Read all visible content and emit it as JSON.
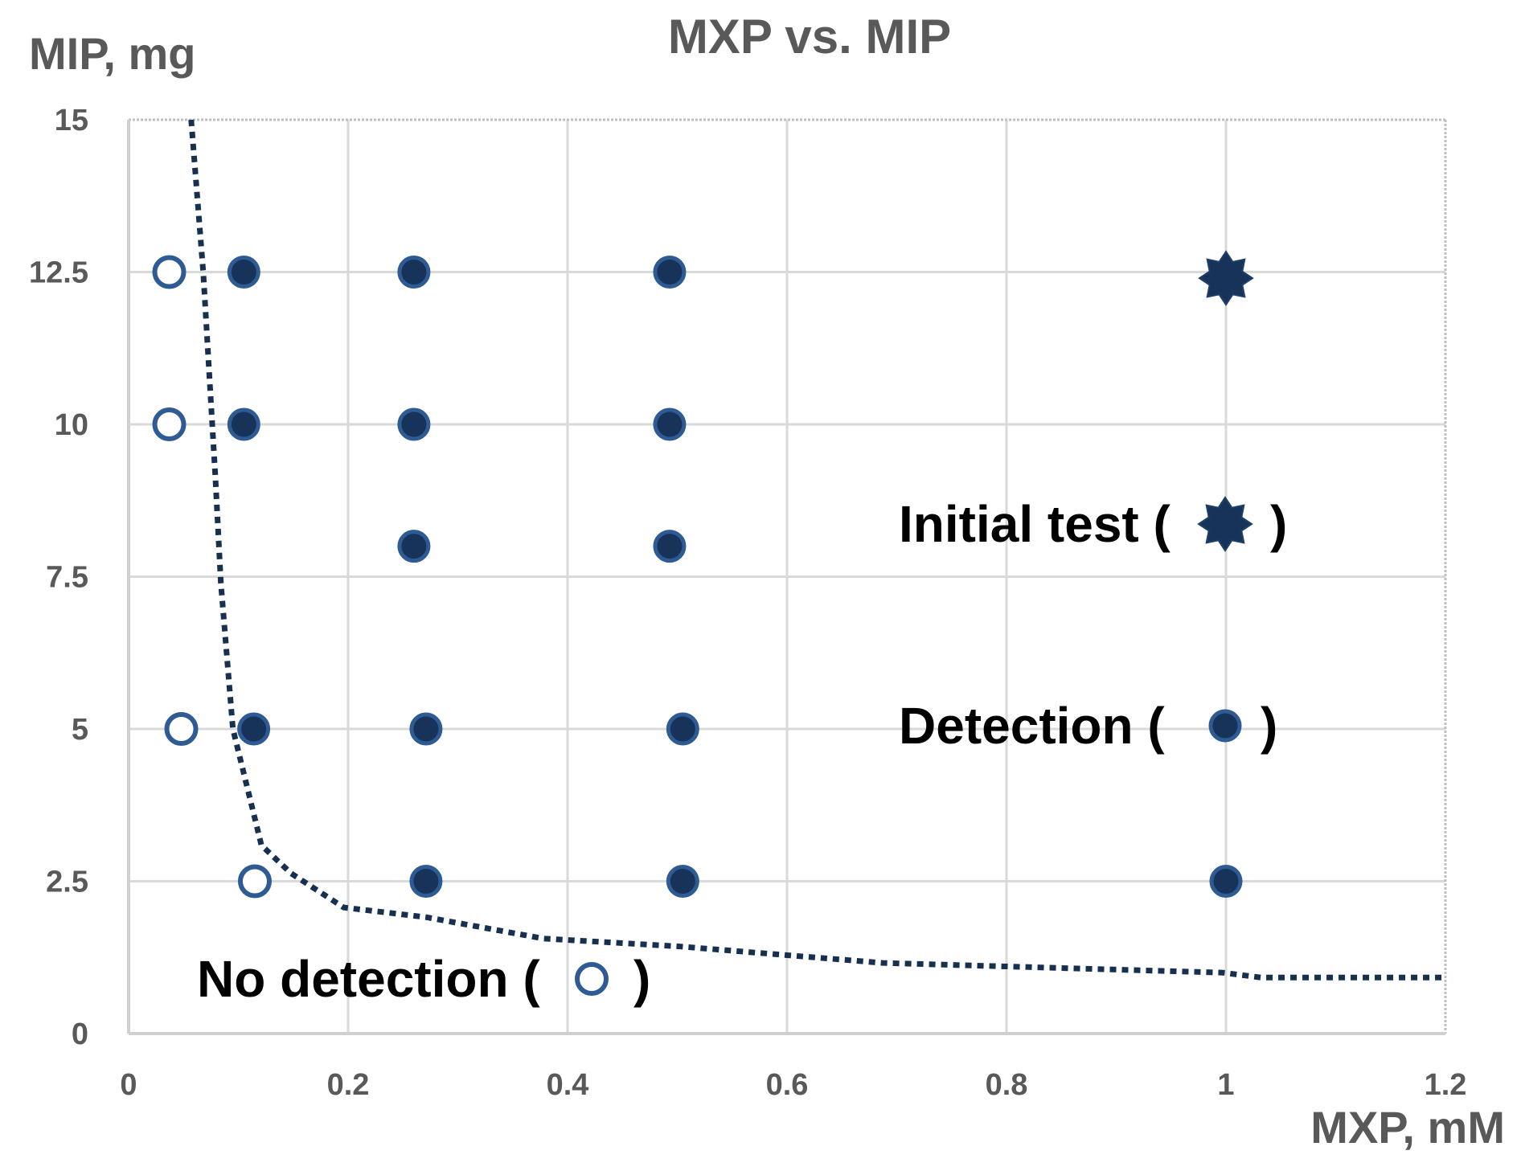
{
  "chart_data": {
    "type": "scatter",
    "title": "MXP vs. MIP",
    "xlabel": "MXP, mM",
    "ylabel": "MIP, mg",
    "xlim": [
      0,
      1.2
    ],
    "ylim": [
      0,
      15
    ],
    "xticks": [
      0,
      0.2,
      0.4,
      0.6,
      0.8,
      1,
      1.2
    ],
    "xtick_labels": [
      "0",
      "0.2",
      "0.4",
      "0.6",
      "0.8",
      "1",
      "1.2"
    ],
    "yticks": [
      0,
      2.5,
      5,
      7.5,
      10,
      12.5,
      15
    ],
    "ytick_labels": [
      "0",
      "2.5",
      "5",
      "7.5",
      "10",
      "12.5",
      "15"
    ],
    "grid": true,
    "colors": {
      "fill": "#17335a",
      "stroke": "#2f5b94",
      "curve": "#17304f",
      "grid": "#d9d9d9",
      "text": "#595959"
    },
    "series": [
      {
        "name": "No detection",
        "marker": "open-circle",
        "points": [
          [
            0.037,
            12.5
          ],
          [
            0.037,
            10
          ],
          [
            0.048,
            5
          ],
          [
            0.115,
            2.5
          ]
        ]
      },
      {
        "name": "Detection",
        "marker": "filled-circle",
        "points": [
          [
            0.105,
            12.5
          ],
          [
            0.105,
            10
          ],
          [
            0.114,
            5
          ],
          [
            0.26,
            12.5
          ],
          [
            0.26,
            10
          ],
          [
            0.26,
            8
          ],
          [
            0.271,
            5
          ],
          [
            0.271,
            2.5
          ],
          [
            0.493,
            12.5
          ],
          [
            0.493,
            10
          ],
          [
            0.493,
            8
          ],
          [
            0.505,
            5
          ],
          [
            0.505,
            2.5
          ],
          [
            1.0,
            2.5
          ]
        ]
      },
      {
        "name": "Initial test",
        "marker": "star",
        "points": [
          [
            1.0,
            12.4
          ]
        ]
      },
      {
        "name": "Detection threshold",
        "marker": "dotted-line",
        "points": [
          [
            0.057,
            15
          ],
          [
            0.068,
            12.5
          ],
          [
            0.079,
            9.16
          ],
          [
            0.084,
            7.4
          ],
          [
            0.095,
            5.0
          ],
          [
            0.121,
            3.09
          ],
          [
            0.148,
            2.63
          ],
          [
            0.196,
            2.07
          ],
          [
            0.271,
            1.91
          ],
          [
            0.378,
            1.56
          ],
          [
            0.502,
            1.43
          ],
          [
            0.687,
            1.16
          ],
          [
            0.997,
            1.0
          ],
          [
            1.032,
            0.92
          ],
          [
            1.2,
            0.92
          ]
        ]
      }
    ],
    "legend": [
      {
        "label": "Initial test (",
        "close": ")",
        "marker": "star",
        "placement": "right-upper"
      },
      {
        "label": "Detection  (",
        "close": ")",
        "marker": "filled-circle",
        "placement": "right-middle"
      },
      {
        "label": "No detection (",
        "close": ")",
        "marker": "open-circle",
        "placement": "bottom-left"
      }
    ]
  }
}
